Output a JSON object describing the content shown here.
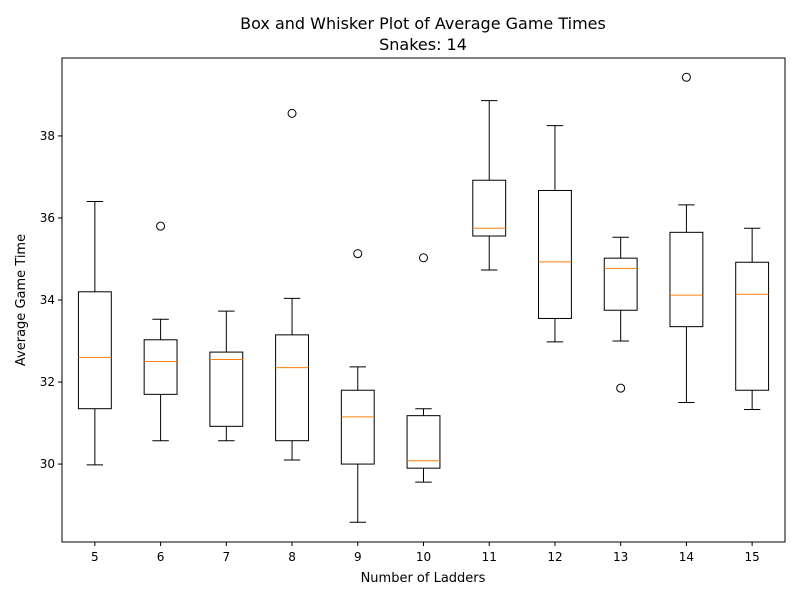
{
  "chart_data": {
    "type": "box",
    "title": "Box and Whisker Plot of Average Game Times",
    "subtitle": "Snakes: 14",
    "xlabel": "Number of Ladders",
    "ylabel": "Average Game Time",
    "ylim": [
      28.1,
      39.9
    ],
    "yticks": [
      30,
      32,
      34,
      36,
      38
    ],
    "grid": false,
    "colors": {
      "box": "#000000",
      "median": "#ff7f0e",
      "outlier": "#000000"
    },
    "categories": [
      "5",
      "6",
      "7",
      "8",
      "9",
      "10",
      "11",
      "12",
      "13",
      "14",
      "15"
    ],
    "boxes": [
      {
        "label": "5",
        "whislo": 29.98,
        "q1": 31.35,
        "med": 32.6,
        "q3": 34.2,
        "whishi": 36.4,
        "fliers": []
      },
      {
        "label": "6",
        "whislo": 30.57,
        "q1": 31.7,
        "med": 32.5,
        "q3": 33.03,
        "whishi": 33.53,
        "fliers": [
          35.8
        ]
      },
      {
        "label": "7",
        "whislo": 30.57,
        "q1": 30.92,
        "med": 32.55,
        "q3": 32.73,
        "whishi": 33.73,
        "fliers": []
      },
      {
        "label": "8",
        "whislo": 30.1,
        "q1": 30.57,
        "med": 32.35,
        "q3": 33.15,
        "whishi": 34.04,
        "fliers": [
          38.55
        ]
      },
      {
        "label": "9",
        "whislo": 28.58,
        "q1": 30.0,
        "med": 31.15,
        "q3": 31.8,
        "whishi": 32.37,
        "fliers": [
          35.13
        ]
      },
      {
        "label": "10",
        "whislo": 29.56,
        "q1": 29.9,
        "med": 30.08,
        "q3": 31.18,
        "whishi": 31.35,
        "fliers": [
          35.03
        ]
      },
      {
        "label": "11",
        "whislo": 34.73,
        "q1": 35.56,
        "med": 35.75,
        "q3": 36.92,
        "whishi": 38.86,
        "fliers": []
      },
      {
        "label": "12",
        "whislo": 32.98,
        "q1": 33.55,
        "med": 34.93,
        "q3": 36.67,
        "whishi": 38.25,
        "fliers": []
      },
      {
        "label": "13",
        "whislo": 33.0,
        "q1": 33.75,
        "med": 34.77,
        "q3": 35.02,
        "whishi": 35.53,
        "fliers": [
          31.85
        ]
      },
      {
        "label": "14",
        "whislo": 31.5,
        "q1": 33.35,
        "med": 34.12,
        "q3": 35.65,
        "whishi": 36.32,
        "fliers": [
          39.43
        ]
      },
      {
        "label": "15",
        "whislo": 31.33,
        "q1": 31.8,
        "med": 34.14,
        "q3": 34.92,
        "whishi": 35.75,
        "fliers": []
      }
    ]
  }
}
